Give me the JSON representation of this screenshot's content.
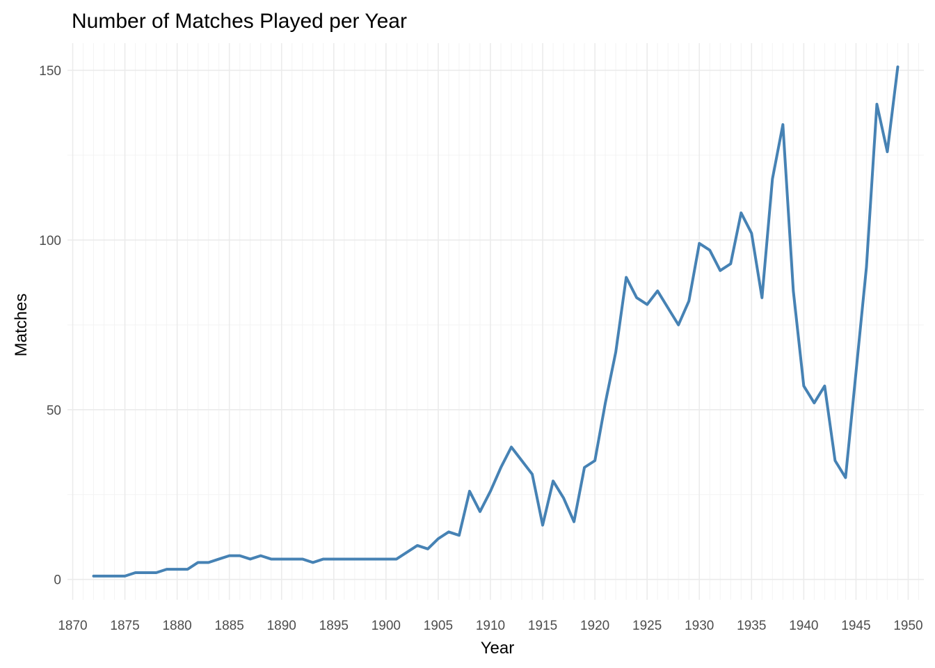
{
  "chart_data": {
    "type": "line",
    "title": "Number of Matches Played per Year",
    "xlabel": "Year",
    "ylabel": "Matches",
    "xlim": [
      1869.5,
      1951.5
    ],
    "ylim": [
      -6,
      158
    ],
    "x_ticks": [
      1870,
      1875,
      1880,
      1885,
      1890,
      1895,
      1900,
      1905,
      1910,
      1915,
      1920,
      1925,
      1930,
      1935,
      1940,
      1945,
      1950
    ],
    "x_minor_step": 1,
    "y_ticks": [
      0,
      50,
      100,
      150
    ],
    "y_minor_ticks": [
      25,
      75,
      125
    ],
    "grid": true,
    "legend": "none",
    "colors": {
      "line": "#4682b4"
    },
    "series": [
      {
        "x": [
          1872,
          1873,
          1874,
          1875,
          1876,
          1877,
          1878,
          1879,
          1880,
          1881,
          1882,
          1883,
          1884,
          1885,
          1886,
          1887,
          1888,
          1889,
          1890,
          1891,
          1892,
          1893,
          1894,
          1895,
          1896,
          1897,
          1898,
          1899,
          1900,
          1901,
          1902,
          1903,
          1904,
          1905,
          1906,
          1907,
          1908,
          1909,
          1910,
          1911,
          1912,
          1913,
          1914,
          1915,
          1916,
          1917,
          1918,
          1919,
          1920,
          1921,
          1922,
          1923,
          1924,
          1925,
          1926,
          1927,
          1928,
          1929,
          1930,
          1931,
          1932,
          1933,
          1934,
          1935,
          1936,
          1937,
          1938,
          1939,
          1940,
          1941,
          1942,
          1943,
          1944,
          1945,
          1946,
          1947,
          1948,
          1949
        ],
        "values": [
          1,
          1,
          1,
          1,
          2,
          2,
          2,
          3,
          3,
          3,
          5,
          5,
          6,
          7,
          7,
          6,
          7,
          6,
          6,
          6,
          6,
          5,
          6,
          6,
          6,
          6,
          6,
          6,
          6,
          6,
          8,
          10,
          9,
          12,
          14,
          13,
          26,
          20,
          26,
          33,
          39,
          35,
          31,
          16,
          29,
          24,
          17,
          33,
          35,
          52,
          67,
          89,
          83,
          81,
          85,
          80,
          75,
          82,
          99,
          97,
          91,
          93,
          108,
          102,
          83,
          118,
          134,
          85,
          57,
          52,
          57,
          35,
          30,
          61,
          92,
          140,
          126,
          151
        ]
      }
    ]
  }
}
